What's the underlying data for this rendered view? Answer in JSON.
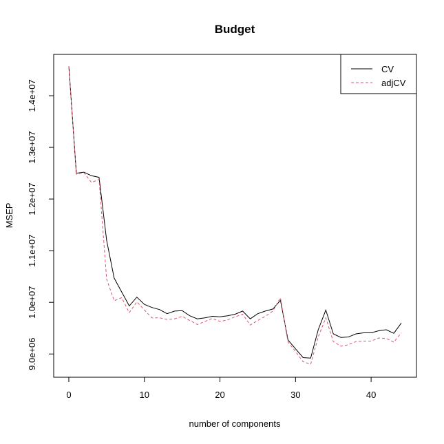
{
  "chart_data": {
    "type": "line",
    "title": "Budget",
    "xlabel": "number of components",
    "ylabel": "MSEP",
    "xlim": [
      -2,
      46
    ],
    "ylim": [
      8550000,
      14800000
    ],
    "x_ticks": [
      0,
      10,
      20,
      30,
      40
    ],
    "x_tick_labels": [
      "0",
      "10",
      "20",
      "30",
      "40"
    ],
    "y_ticks": [
      9000000,
      10000000,
      11000000,
      12000000,
      13000000,
      14000000
    ],
    "y_tick_labels": [
      "9.0e+06",
      "1.0e+07",
      "1.1e+07",
      "1.2e+07",
      "1.3e+07",
      "1.4e+07"
    ],
    "legend_position": "top-right",
    "grid": false,
    "x": [
      0,
      1,
      2,
      3,
      4,
      5,
      6,
      7,
      8,
      9,
      10,
      11,
      12,
      13,
      14,
      15,
      16,
      17,
      18,
      19,
      20,
      21,
      22,
      23,
      24,
      25,
      26,
      27,
      28,
      29,
      30,
      31,
      32,
      33,
      34,
      35,
      36,
      37,
      38,
      39,
      40,
      41,
      42,
      43,
      44
    ],
    "series": [
      {
        "name": "CV",
        "color": "#000000",
        "dash": "solid",
        "values": [
          14570000,
          12500000,
          12520000,
          12450000,
          12420000,
          11200000,
          10470000,
          10200000,
          9930000,
          10100000,
          9960000,
          9900000,
          9860000,
          9780000,
          9830000,
          9840000,
          9740000,
          9680000,
          9700000,
          9730000,
          9720000,
          9740000,
          9770000,
          9830000,
          9680000,
          9780000,
          9830000,
          9870000,
          10040000,
          9270000,
          9100000,
          8930000,
          8920000,
          9470000,
          9850000,
          9390000,
          9320000,
          9330000,
          9390000,
          9410000,
          9410000,
          9450000,
          9470000,
          9400000,
          9600000
        ]
      },
      {
        "name": "adjCV",
        "color": "#df536b",
        "dash": "dashed",
        "values": [
          14570000,
          12480000,
          12510000,
          12320000,
          12380000,
          10450000,
          10030000,
          10090000,
          9800000,
          10010000,
          9850000,
          9700000,
          9700000,
          9670000,
          9680000,
          9730000,
          9650000,
          9570000,
          9630000,
          9690000,
          9630000,
          9660000,
          9720000,
          9770000,
          9560000,
          9650000,
          9730000,
          9830000,
          10090000,
          9230000,
          9050000,
          8850000,
          8800000,
          9330000,
          9700000,
          9240000,
          9150000,
          9180000,
          9240000,
          9250000,
          9250000,
          9310000,
          9300000,
          9230000,
          9410000
        ]
      }
    ]
  }
}
